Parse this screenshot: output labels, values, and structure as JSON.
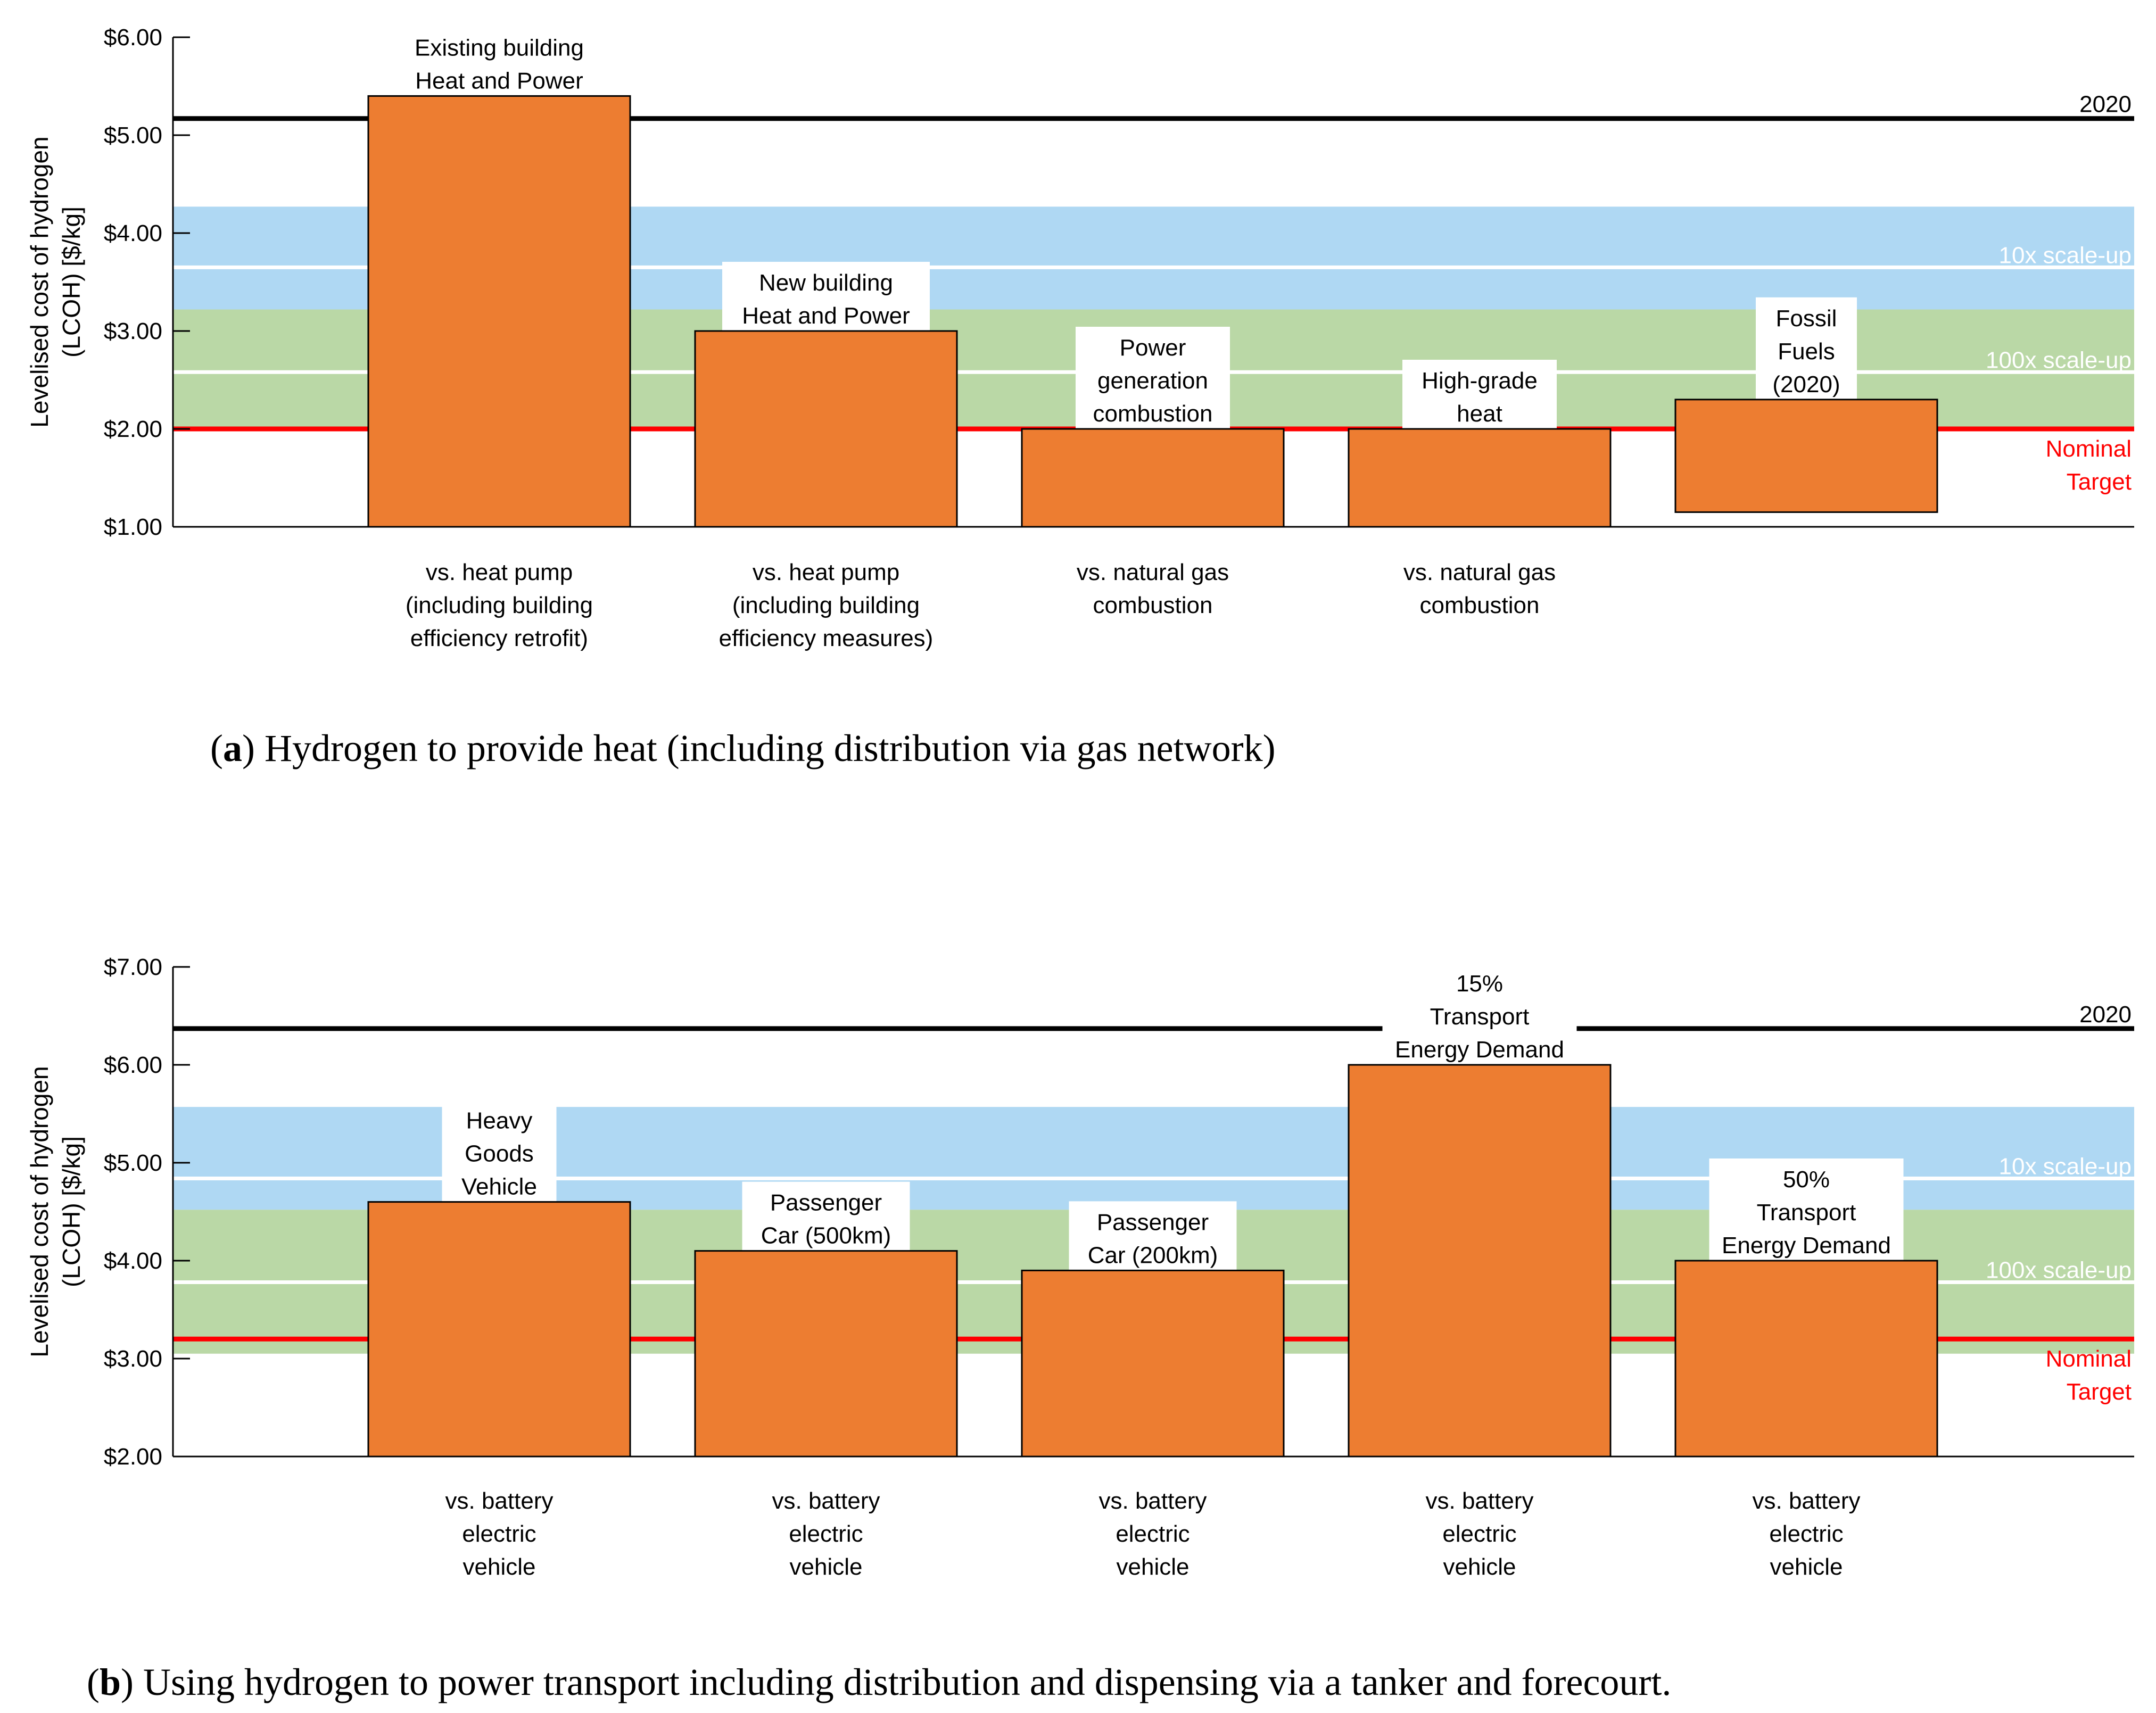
{
  "colors": {
    "bar_fill": "#ed7d31",
    "bar_stroke": "#000000",
    "band_10x": "#afd8f3",
    "band_100x": "#bad8a6",
    "line_2020": "#000000",
    "line_target": "#ff0000",
    "line_scale": "#ffffff",
    "label_target": "#ff0000"
  },
  "captions": {
    "a": {
      "letter": "a",
      "text": "Hydrogen to provide heat (including distribution via gas network)"
    },
    "b": {
      "letter": "b",
      "text": "Using hydrogen to power transport including distribution and dispensing via a tanker and forecourt."
    }
  },
  "chart_data": [
    {
      "type": "bar",
      "ylabel": [
        "Levelised cost of hydrogen",
        "(LCOH) [$/kg]"
      ],
      "ylim": [
        1.0,
        6.0
      ],
      "yticks": [
        1.0,
        2.0,
        3.0,
        4.0,
        5.0,
        6.0
      ],
      "ytick_labels": [
        "$1.00",
        "$2.00",
        "$3.00",
        "$4.00",
        "$5.00",
        "$6.00"
      ],
      "grid": false,
      "bars": [
        {
          "label": [
            "Existing building",
            "Heat and Power"
          ],
          "value": 5.4,
          "base": 1.0,
          "category": [
            "vs. heat pump",
            "(including building",
            "efficiency retrofit)"
          ]
        },
        {
          "label": [
            "New building",
            "Heat and Power"
          ],
          "value": 3.0,
          "base": 1.0,
          "category": [
            "vs. heat pump",
            "(including building",
            "efficiency measures)"
          ]
        },
        {
          "label": [
            "Power",
            "generation",
            "combustion"
          ],
          "value": 2.0,
          "base": 1.0,
          "category": [
            "vs. natural gas",
            "combustion"
          ]
        },
        {
          "label": [
            "High-grade",
            "heat"
          ],
          "value": 2.0,
          "base": 1.0,
          "category": [
            "vs. natural gas",
            "combustion"
          ]
        },
        {
          "label": [
            "Fossil",
            "Fuels",
            "(2020)"
          ],
          "value": 2.3,
          "base": 1.15,
          "category": []
        }
      ],
      "bands": [
        {
          "name": "10x scale-up",
          "from": 3.22,
          "to": 4.27,
          "line": 3.65
        },
        {
          "name": "100x scale-up",
          "from": 1.98,
          "to": 3.22,
          "line": 2.58
        }
      ],
      "lines": [
        {
          "name": "2020",
          "value": 5.17
        },
        {
          "name": [
            "Nominal",
            "Target"
          ],
          "value": 2.0
        }
      ]
    },
    {
      "type": "bar",
      "ylabel": [
        "Levelised cost of hydrogen",
        "(LCOH) [$/kg]"
      ],
      "ylim": [
        2.0,
        7.0
      ],
      "yticks": [
        2.0,
        3.0,
        4.0,
        5.0,
        6.0,
        7.0
      ],
      "ytick_labels": [
        "$2.00",
        "$3.00",
        "$4.00",
        "$5.00",
        "$6.00",
        "$7.00"
      ],
      "grid": false,
      "bars": [
        {
          "label": [
            "Heavy",
            "Goods",
            "Vehicle"
          ],
          "value": 4.6,
          "base": 2.0,
          "category": [
            "vs. battery",
            "electric",
            "vehicle"
          ]
        },
        {
          "label": [
            "Passenger",
            "Car (500km)"
          ],
          "value": 4.1,
          "base": 2.0,
          "category": [
            "vs. battery",
            "electric",
            "vehicle"
          ]
        },
        {
          "label": [
            "Passenger",
            "Car (200km)"
          ],
          "value": 3.9,
          "base": 2.0,
          "category": [
            "vs. battery",
            "electric",
            "vehicle"
          ]
        },
        {
          "label": [
            "15%",
            "Transport",
            "Energy Demand"
          ],
          "value": 6.0,
          "base": 2.0,
          "category": [
            "vs. battery",
            "electric",
            "vehicle"
          ]
        },
        {
          "label": [
            "50%",
            "Transport",
            "Energy Demand"
          ],
          "value": 4.0,
          "base": 2.0,
          "category": [
            "vs. battery",
            "electric",
            "vehicle"
          ]
        }
      ],
      "bands": [
        {
          "name": "10x scale-up",
          "from": 4.52,
          "to": 5.57,
          "line": 4.84
        },
        {
          "name": "100x scale-up",
          "from": 3.05,
          "to": 4.52,
          "line": 3.78
        }
      ],
      "lines": [
        {
          "name": "2020",
          "value": 6.37
        },
        {
          "name": [
            "Nominal",
            "Target"
          ],
          "value": 3.2
        }
      ]
    }
  ]
}
